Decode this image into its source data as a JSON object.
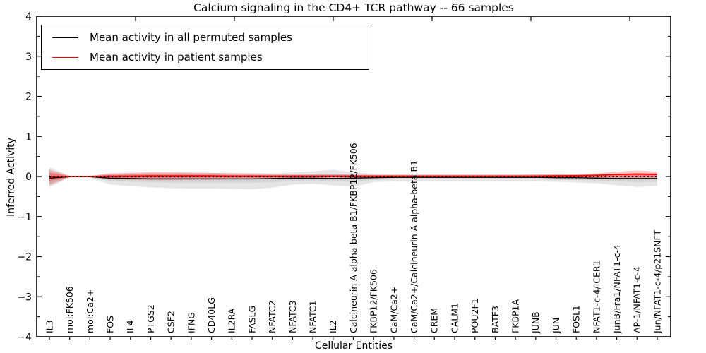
{
  "legend": {
    "items": [
      {
        "label": "Mean activity in all permuted samples",
        "color": "#000000"
      },
      {
        "label": "Mean activity in patient samples",
        "color": "#ff0000"
      }
    ]
  },
  "chart_data": {
    "type": "line",
    "title": "Calcium signaling in the CD4+ TCR pathway -- 66 samples",
    "xlabel": "Cellular Entities",
    "ylabel": "Inferred Activity",
    "ylim": [
      -4,
      4
    ],
    "ytick_labels": [
      "4",
      "3",
      "2",
      "1",
      "0",
      "−1",
      "−2",
      "−3",
      "−4"
    ],
    "ytick_values": [
      4,
      3,
      2,
      1,
      0,
      -1,
      -2,
      -3,
      -4
    ],
    "grid": false,
    "legend_position": "upper left",
    "zero_reference_line": 0,
    "categories": [
      "IL3",
      "mol:FK506",
      "mol:Ca2+",
      "FOS",
      "IL4",
      "PTGS2",
      "CSF2",
      "IFNG",
      "CD40LG",
      "IL2RA",
      "FASLG",
      "NFATC2",
      "NFATC3",
      "NFATC1",
      "IL2",
      "Calcineurin A alpha-beta B1/FKBP12/FK506",
      "FKBP12/FK506",
      "CaM/Ca2+",
      "CaM/Ca2+/Calcineurin A alpha-beta B1",
      "CREM",
      "CALM1",
      "POU2F1",
      "BATF3",
      "FKBP1A",
      "JUNB",
      "JUN",
      "FOSL1",
      "NFAT1-c-4/ICER1",
      "JunB/Fra1/NFAT1-c-4",
      "AP-1/NFAT1-c-4",
      "Jun/NFAT1-c-4/p21SNFT"
    ],
    "series": [
      {
        "name": "Mean activity in all permuted samples",
        "color": "#000000",
        "values": [
          -0.04,
          -0.005,
          -0.005,
          -0.04,
          -0.05,
          -0.06,
          -0.06,
          -0.06,
          -0.06,
          -0.06,
          -0.06,
          -0.05,
          -0.04,
          -0.04,
          -0.05,
          -0.04,
          -0.03,
          -0.02,
          -0.02,
          -0.02,
          -0.02,
          -0.02,
          -0.02,
          -0.02,
          -0.02,
          -0.03,
          -0.03,
          -0.04,
          -0.05,
          -0.05,
          -0.05
        ],
        "band_outer_upper": [
          0.23,
          0.02,
          0.02,
          0.07,
          0.08,
          0.09,
          0.09,
          0.09,
          0.09,
          0.09,
          0.09,
          0.08,
          0.1,
          0.13,
          0.17,
          0.1,
          0.07,
          0.06,
          0.06,
          0.06,
          0.06,
          0.06,
          0.06,
          0.06,
          0.06,
          0.06,
          0.06,
          0.06,
          0.07,
          0.07,
          0.06
        ],
        "band_outer_lower": [
          -0.27,
          -0.02,
          -0.02,
          -0.2,
          -0.24,
          -0.27,
          -0.29,
          -0.3,
          -0.3,
          -0.31,
          -0.32,
          -0.28,
          -0.2,
          -0.18,
          -0.22,
          -0.26,
          -0.14,
          -0.12,
          -0.11,
          -0.11,
          -0.11,
          -0.11,
          -0.11,
          -0.11,
          -0.12,
          -0.13,
          -0.15,
          -0.17,
          -0.22,
          -0.26,
          -0.24
        ],
        "band_inner_upper": [
          0.1,
          0.01,
          0.01,
          0.02,
          0.02,
          0.02,
          0.02,
          0.02,
          0.02,
          0.02,
          0.02,
          0.02,
          0.03,
          0.05,
          0.07,
          0.04,
          0.03,
          0.02,
          0.02,
          0.02,
          0.02,
          0.02,
          0.02,
          0.02,
          0.02,
          0.02,
          0.02,
          0.02,
          0.03,
          0.03,
          0.03
        ],
        "band_inner_lower": [
          -0.18,
          -0.01,
          -0.01,
          -0.11,
          -0.13,
          -0.14,
          -0.15,
          -0.15,
          -0.15,
          -0.15,
          -0.15,
          -0.14,
          -0.11,
          -0.1,
          -0.12,
          -0.13,
          -0.08,
          -0.07,
          -0.07,
          -0.07,
          -0.07,
          -0.07,
          -0.07,
          -0.07,
          -0.07,
          -0.08,
          -0.09,
          -0.1,
          -0.12,
          -0.14,
          -0.13
        ]
      },
      {
        "name": "Mean activity in patient samples",
        "color": "#ff0000",
        "values": [
          0.0,
          0.0,
          0.0,
          0.01,
          0.01,
          0.015,
          0.015,
          0.015,
          0.015,
          0.01,
          0.01,
          0.01,
          0.01,
          0.01,
          0.01,
          0.01,
          0.01,
          0.01,
          0.01,
          0.01,
          0.01,
          0.01,
          0.01,
          0.01,
          0.01,
          0.015,
          0.02,
          0.03,
          0.05,
          0.06,
          0.05
        ],
        "band_outer_upper": [
          0.17,
          0.015,
          0.015,
          0.08,
          0.09,
          0.11,
          0.11,
          0.1,
          0.09,
          0.08,
          0.07,
          0.06,
          0.05,
          0.05,
          0.05,
          0.05,
          0.04,
          0.04,
          0.04,
          0.04,
          0.04,
          0.04,
          0.04,
          0.04,
          0.05,
          0.05,
          0.06,
          0.08,
          0.12,
          0.15,
          0.12
        ],
        "band_outer_lower": [
          -0.22,
          -0.015,
          -0.015,
          -0.07,
          -0.08,
          -0.09,
          -0.09,
          -0.08,
          -0.08,
          -0.07,
          -0.07,
          -0.06,
          -0.05,
          -0.04,
          -0.04,
          -0.04,
          -0.03,
          -0.03,
          -0.03,
          -0.03,
          -0.03,
          -0.03,
          -0.03,
          -0.03,
          -0.03,
          -0.03,
          -0.03,
          -0.03,
          -0.04,
          -0.04,
          -0.04
        ],
        "band_inner_upper": [
          0.1,
          0.008,
          0.008,
          0.04,
          0.05,
          0.06,
          0.06,
          0.05,
          0.05,
          0.04,
          0.04,
          0.03,
          0.03,
          0.03,
          0.03,
          0.03,
          0.025,
          0.025,
          0.025,
          0.025,
          0.025,
          0.025,
          0.025,
          0.025,
          0.03,
          0.03,
          0.035,
          0.05,
          0.07,
          0.09,
          0.08
        ],
        "band_inner_lower": [
          -0.11,
          -0.008,
          -0.008,
          -0.03,
          -0.04,
          -0.05,
          -0.05,
          -0.04,
          -0.04,
          -0.035,
          -0.03,
          -0.03,
          -0.025,
          -0.02,
          -0.02,
          -0.02,
          -0.015,
          -0.015,
          -0.015,
          -0.015,
          -0.015,
          -0.015,
          -0.015,
          -0.015,
          -0.015,
          -0.015,
          -0.015,
          -0.02,
          -0.02,
          -0.02,
          -0.02
        ]
      }
    ]
  }
}
